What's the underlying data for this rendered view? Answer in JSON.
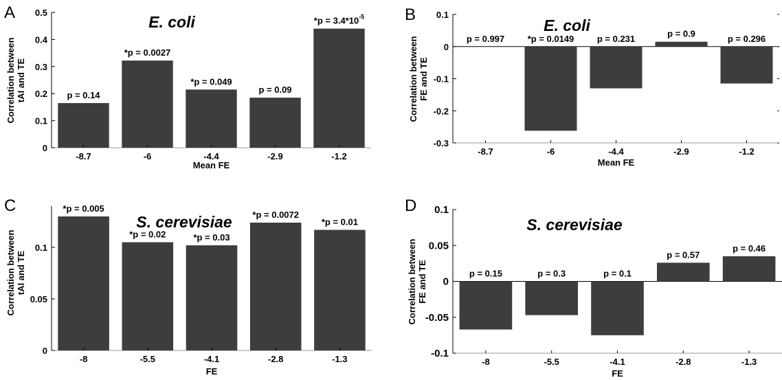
{
  "figure": {
    "panels": [
      "A",
      "B",
      "C",
      "D"
    ]
  },
  "colors": {
    "bar": "#3d3d3d",
    "axis": "#000000",
    "grid": "#9a9a9a",
    "background": "#ffffff"
  },
  "chart_data": [
    {
      "panel": "A",
      "type": "bar",
      "title": "E. coli",
      "xlabel": "Mean FE",
      "ylabel": [
        "Correlation between",
        "tAI and TE"
      ],
      "categories": [
        "-8.7",
        "-6",
        "-4.4",
        "-2.9",
        "-1.2"
      ],
      "values": [
        0.165,
        0.322,
        0.215,
        0.185,
        0.44
      ],
      "labels": [
        "p = 0.14",
        "*p = 0.0027",
        "*p = 0.049",
        "p = 0.09",
        "*p =  3.4*10"
      ],
      "label_superscripts": [
        "",
        "",
        "",
        "",
        "-5"
      ],
      "ylim": [
        0,
        0.5
      ],
      "yticks": [
        0,
        0.1,
        0.2,
        0.3,
        0.4,
        0.5
      ],
      "ytick_labels": [
        "0",
        "0.1",
        "0.2",
        "0.3",
        "0.4",
        "0.5"
      ]
    },
    {
      "panel": "B",
      "type": "bar",
      "title": "E. coli",
      "xlabel": "Mean FE",
      "ylabel": [
        "Correlation between",
        "FE and TE"
      ],
      "categories": [
        "-8.7",
        "-6",
        "-4.4",
        "-2.9",
        "-1.2"
      ],
      "values": [
        0.0,
        -0.262,
        -0.13,
        0.015,
        -0.115
      ],
      "labels": [
        "p = 0.997",
        "*p = 0.0149",
        "p = 0.231",
        "p = 0.9",
        "p = 0.296"
      ],
      "label_superscripts": [
        "",
        "",
        "",
        "",
        ""
      ],
      "ylim": [
        -0.3,
        0.1
      ],
      "yticks": [
        -0.3,
        -0.2,
        -0.1,
        0,
        0.1
      ],
      "ytick_labels": [
        "-0.3",
        "-0.2",
        "-0.1",
        "0",
        "0.1"
      ]
    },
    {
      "panel": "C",
      "type": "bar",
      "title": "S. cerevisiae",
      "xlabel": "FE",
      "ylabel": [
        "Correlation between",
        "tAI and TE"
      ],
      "categories": [
        "-8",
        "-5.5",
        "-4.1",
        "-2.8",
        "-1.3"
      ],
      "values": [
        0.13,
        0.105,
        0.102,
        0.124,
        0.117
      ],
      "labels": [
        "*p = 0.005",
        "*p = 0.02",
        "*p = 0.03",
        "*p = 0.0072",
        "*p = 0.01"
      ],
      "label_superscripts": [
        "",
        "",
        "",
        "",
        ""
      ],
      "ylim": [
        0,
        0.14
      ],
      "yticks": [
        0,
        0.05,
        0.1
      ],
      "ytick_labels": [
        "0",
        "0.05",
        "0.1"
      ]
    },
    {
      "panel": "D",
      "type": "bar",
      "title": "S. cerevisiae",
      "xlabel": "FE",
      "ylabel": [
        "Correlation between",
        "FE and TE"
      ],
      "categories": [
        "-8",
        "-5.5",
        "-4.1",
        "-2.8",
        "-1.3"
      ],
      "values": [
        -0.067,
        -0.047,
        -0.075,
        0.026,
        0.035
      ],
      "labels": [
        "p = 0.15",
        "p = 0.3",
        "p = 0.1",
        "p = 0.57",
        "p = 0.46"
      ],
      "label_superscripts": [
        "",
        "",
        "",
        "",
        ""
      ],
      "ylim": [
        -0.1,
        0.1
      ],
      "yticks": [
        -0.1,
        -0.05,
        0,
        0.05,
        0.1
      ],
      "ytick_labels": [
        "-0.1",
        "-0.05",
        "0",
        "0.05",
        "0.1"
      ]
    }
  ]
}
